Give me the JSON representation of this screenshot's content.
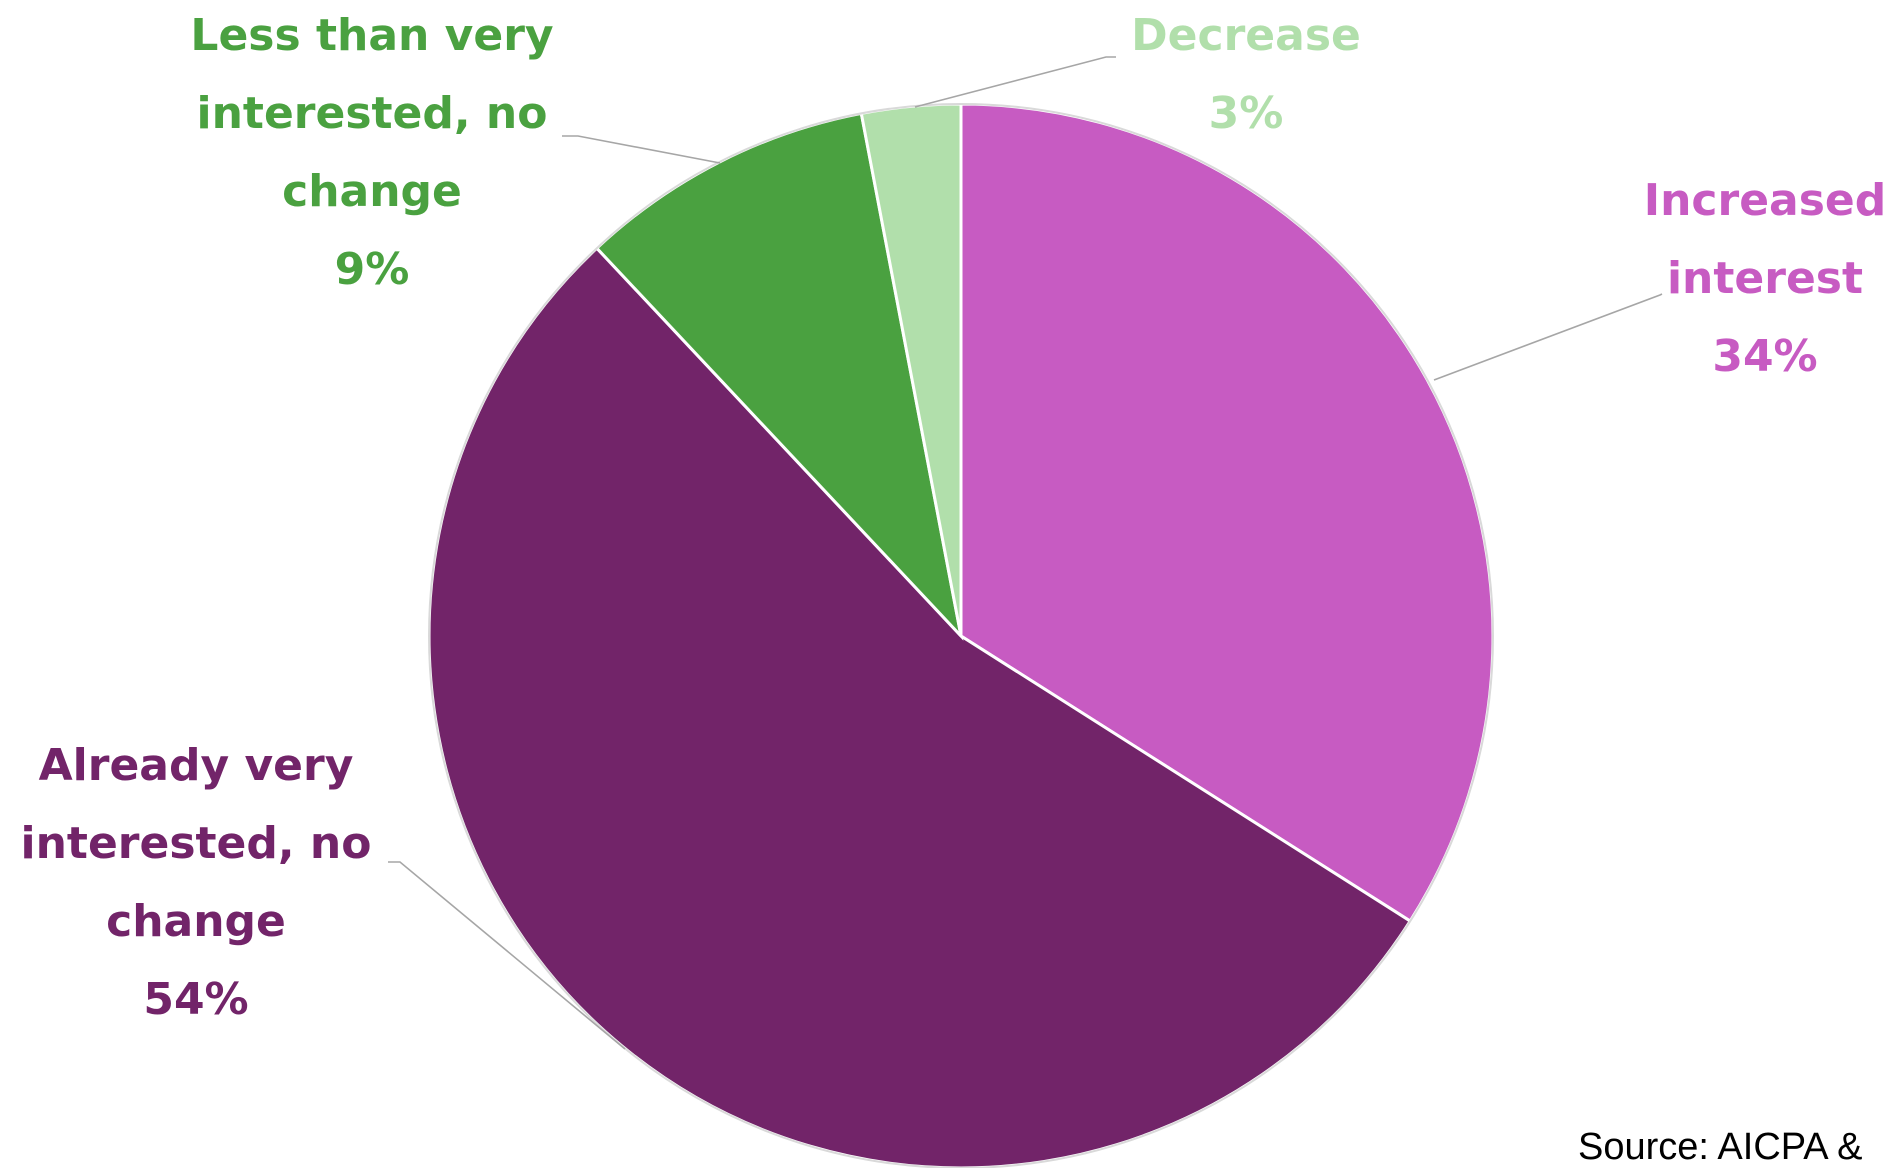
{
  "chart_data": {
    "type": "pie",
    "categories": [
      "Increased interest",
      "Already very interested, no change",
      "Less than very interested, no change",
      "Decrease"
    ],
    "values": [
      34,
      54,
      9,
      3
    ],
    "value_suffix": "%",
    "colors": [
      "#c75bc2",
      "#722469",
      "#4aa140",
      "#b1dfab"
    ],
    "label_colors": [
      "#c75bc2",
      "#722469",
      "#4aa140",
      "#b1dfab"
    ],
    "labels": [
      {
        "lines": [
          "Increased",
          "interest"
        ],
        "value_text": "34%"
      },
      {
        "lines": [
          "Already very",
          "interested, no",
          "change"
        ],
        "value_text": "54%"
      },
      {
        "lines": [
          "Less than very",
          "interested, no",
          "change"
        ],
        "value_text": "9%"
      },
      {
        "lines": [
          "Decrease"
        ],
        "value_text": "3%"
      }
    ],
    "start_angle": "12 o'clock",
    "direction": "clockwise",
    "legend": "none",
    "leader_lines": true
  },
  "source_note": "Source:  AICPA &"
}
